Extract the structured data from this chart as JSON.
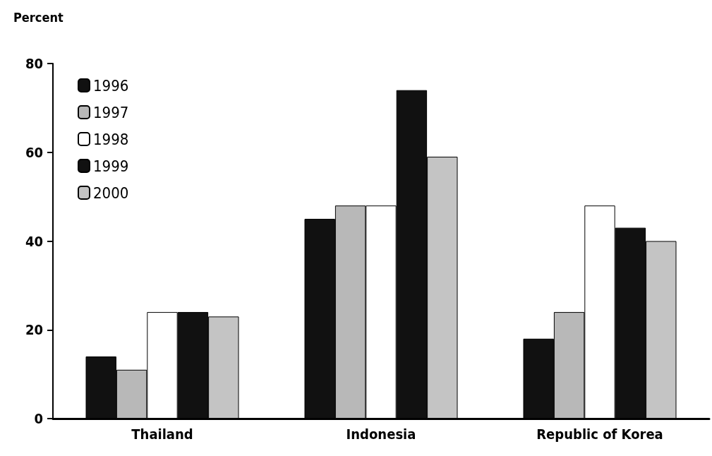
{
  "chart_data": {
    "type": "bar",
    "ylabel": "Percent",
    "categories": [
      "Thailand",
      "Indonesia",
      "Republic of Korea"
    ],
    "series": [
      {
        "name": "1996",
        "color": "#111111",
        "values": [
          14,
          45,
          18
        ]
      },
      {
        "name": "1997",
        "color": "#b8b8b8",
        "values": [
          11,
          48,
          24
        ]
      },
      {
        "name": "1998",
        "color": "#ffffff",
        "values": [
          24,
          48,
          48
        ]
      },
      {
        "name": "1999",
        "color": "#111111",
        "values": [
          24,
          74,
          43
        ]
      },
      {
        "name": "2000",
        "color": "#c4c4c4",
        "values": [
          23,
          59,
          40
        ]
      }
    ],
    "ylim": [
      0,
      80
    ],
    "yticks": [
      0,
      20,
      40,
      60,
      80
    ],
    "grid": false,
    "legend": "top left"
  }
}
